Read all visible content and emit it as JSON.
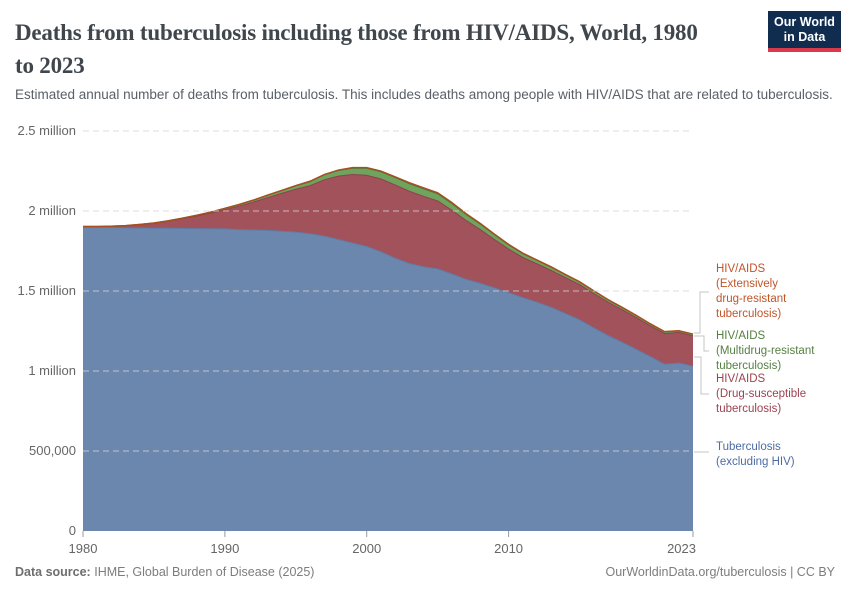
{
  "header": {
    "title_lines": [
      "Deaths from tuberculosis including those from HIV/AIDS, World, 1980",
      "to 2023"
    ],
    "title_full": "Deaths from tuberculosis including those from HIV/AIDS, World, 1980 to 2023",
    "subtitle": "Estimated annual number of deaths from tuberculosis. This includes deaths among people with HIV/AIDS that are related to tuberculosis.",
    "logo": {
      "line1": "Our World",
      "line2": "in Data",
      "bg_color": "#102d50",
      "accent_color": "#d93a4b"
    }
  },
  "chart_data": {
    "type": "area",
    "stacked": true,
    "title": "Deaths from tuberculosis including those from HIV/AIDS, World, 1980 to 2023",
    "xlim": [
      1980,
      2023
    ],
    "ylim": [
      0,
      2500000
    ],
    "grid": true,
    "legend_position": "right",
    "x": [
      1980,
      1981,
      1982,
      1983,
      1984,
      1985,
      1986,
      1987,
      1988,
      1989,
      1990,
      1991,
      1992,
      1993,
      1994,
      1995,
      1996,
      1997,
      1998,
      1999,
      2000,
      2001,
      2002,
      2003,
      2004,
      2005,
      2006,
      2007,
      2008,
      2009,
      2010,
      2011,
      2012,
      2013,
      2014,
      2015,
      2016,
      2017,
      2018,
      2019,
      2020,
      2021,
      2022,
      2023
    ],
    "xticks": [
      1980,
      1990,
      2000,
      2010,
      2023
    ],
    "yticks": [
      {
        "value": 0,
        "label": "0"
      },
      {
        "value": 500000,
        "label": "500,000"
      },
      {
        "value": 1000000,
        "label": "1 million"
      },
      {
        "value": 1500000,
        "label": "1.5 million"
      },
      {
        "value": 2000000,
        "label": "2 million"
      },
      {
        "value": 2500000,
        "label": "2.5 million"
      }
    ],
    "series": [
      {
        "id": "tb-excl-hiv",
        "name": "Tuberculosis (excluding HIV)",
        "color": "#6c87ad",
        "edge_color": "#607ca6",
        "edge_width": 1,
        "values": [
          1900000,
          1898000,
          1896000,
          1895000,
          1894000,
          1893000,
          1892000,
          1891000,
          1890000,
          1889000,
          1888000,
          1884000,
          1881000,
          1879000,
          1874000,
          1868000,
          1858000,
          1843000,
          1822000,
          1800000,
          1778000,
          1745000,
          1705000,
          1672000,
          1652000,
          1638000,
          1607000,
          1573000,
          1548000,
          1520000,
          1490000,
          1458000,
          1430000,
          1398000,
          1360000,
          1320000,
          1270000,
          1222000,
          1180000,
          1135000,
          1090000,
          1042000,
          1050000,
          1030000
        ]
      },
      {
        "id": "hiv-ds-tb",
        "name": "HIV/AIDS (Drug-susceptible tuberculosis)",
        "color": "#a1525b",
        "edge_color": "#8e424c",
        "edge_width": 1,
        "values": [
          3000,
          5000,
          8000,
          13000,
          20000,
          30000,
          44000,
          60000,
          78000,
          98000,
          120000,
          146000,
          174000,
          204000,
          236000,
          268000,
          300000,
          352000,
          396000,
          428000,
          445000,
          455000,
          458000,
          452000,
          440000,
          425000,
          398000,
          368000,
          336000,
          302000,
          272000,
          252000,
          240000,
          231000,
          224000,
          220000,
          214000,
          208000,
          203000,
          199000,
          192000,
          192000,
          191000,
          190000
        ]
      },
      {
        "id": "hiv-mdr-tb",
        "name": "HIV/AIDS (Multidrug-resistant tuberculosis)",
        "color": "#70a35e",
        "edge_color": "#4a7a3a",
        "edge_width": 1.3,
        "values": [
          0,
          0,
          1000,
          1000,
          2000,
          2000,
          3000,
          4000,
          5000,
          6000,
          8000,
          10000,
          12000,
          15000,
          18000,
          22000,
          26000,
          31000,
          36000,
          40000,
          45000,
          46000,
          47000,
          48000,
          48000,
          46000,
          43000,
          39000,
          35000,
          31000,
          27000,
          24000,
          22000,
          20000,
          18000,
          17000,
          16000,
          15000,
          14000,
          13000,
          12000,
          11000,
          10000,
          10000
        ]
      },
      {
        "id": "hiv-xdr-tb",
        "name": "HIV/AIDS (Extensively drug-resistant tuberculosis)",
        "color": "#c2602f",
        "edge_color": "#a84e1f",
        "edge_width": 1.4,
        "values": [
          0,
          0,
          0,
          0,
          0,
          0,
          0,
          0,
          0,
          0,
          1000,
          1000,
          1000,
          1000,
          1000,
          1000,
          2000,
          2000,
          2000,
          3000,
          3000,
          4000,
          4000,
          5000,
          5000,
          5000,
          5000,
          4000,
          4000,
          3000,
          3000,
          3000,
          2000,
          2000,
          2000,
          2000,
          2000,
          2000,
          1000,
          1000,
          1000,
          1000,
          1000,
          1000
        ]
      }
    ]
  },
  "legend": {
    "items": [
      {
        "id": "hiv-xdr-tb",
        "color": "#c0552a",
        "lines": [
          "HIV/AIDS",
          "(Extensively",
          "drug-resistant",
          "tuberculosis)"
        ]
      },
      {
        "id": "hiv-mdr-tb",
        "color": "#568043",
        "lines": [
          "HIV/AIDS",
          "(Multidrug-resistant",
          "tuberculosis)"
        ]
      },
      {
        "id": "hiv-ds-tb",
        "color": "#9c4351",
        "lines": [
          "HIV/AIDS",
          "(Drug-susceptible",
          "tuberculosis)"
        ]
      },
      {
        "id": "tb-excl-hiv",
        "color": "#4d6ba5",
        "lines": [
          "Tuberculosis",
          "(excluding HIV)"
        ]
      }
    ]
  },
  "footer": {
    "source_label": "Data source:",
    "source_text": "IHME, Global Burden of Disease (2025)",
    "right_text": "OurWorldinData.org/tuberculosis | CC BY"
  },
  "colors": {
    "background": "#ffffff",
    "grid": "#d6d6d6",
    "axis_text": "#666666",
    "tick": "#999999",
    "connector": "#c4c4c4",
    "title_text": "#3f464c",
    "subtitle_text": "#596067",
    "footer_text": "#7d7d7d"
  }
}
